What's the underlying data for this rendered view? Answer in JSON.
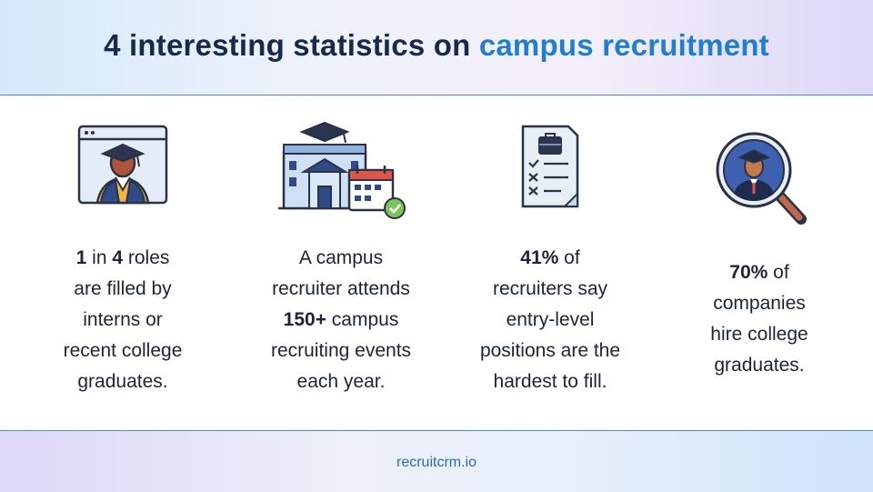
{
  "header": {
    "title_prefix": "4 interesting statistics on ",
    "title_accent": "campus recruitment"
  },
  "stats": [
    {
      "icon": "graduate-profile-icon",
      "lines": [
        [
          {
            "t": "1",
            "b": true
          },
          {
            "t": " in ",
            "b": false
          },
          {
            "t": "4",
            "b": true
          },
          {
            "t": " roles",
            "b": false
          }
        ],
        [
          {
            "t": "are filled by",
            "b": false
          }
        ],
        [
          {
            "t": "interns or",
            "b": false
          }
        ],
        [
          {
            "t": "recent college",
            "b": false
          }
        ],
        [
          {
            "t": "graduates.",
            "b": false
          }
        ]
      ]
    },
    {
      "icon": "campus-calendar-icon",
      "lines": [
        [
          {
            "t": "A campus",
            "b": false
          }
        ],
        [
          {
            "t": "recruiter attends",
            "b": false
          }
        ],
        [
          {
            "t": "150+",
            "b": true
          },
          {
            "t": " campus",
            "b": false
          }
        ],
        [
          {
            "t": "recruiting events",
            "b": false
          }
        ],
        [
          {
            "t": "each year.",
            "b": false
          }
        ]
      ]
    },
    {
      "icon": "job-checklist-icon",
      "lines": [
        [
          {
            "t": "41%",
            "b": true
          },
          {
            "t": " of",
            "b": false
          }
        ],
        [
          {
            "t": "recruiters say",
            "b": false
          }
        ],
        [
          {
            "t": "entry-level",
            "b": false
          }
        ],
        [
          {
            "t": "positions are the",
            "b": false
          }
        ],
        [
          {
            "t": "hardest to fill.",
            "b": false
          }
        ]
      ]
    },
    {
      "icon": "magnifier-graduate-icon",
      "lines": [
        [
          {
            "t": "70%",
            "b": true
          },
          {
            "t": " of",
            "b": false
          }
        ],
        [
          {
            "t": "companies",
            "b": false
          }
        ],
        [
          {
            "t": "hire college",
            "b": false
          }
        ],
        [
          {
            "t": "graduates.",
            "b": false
          }
        ]
      ]
    }
  ],
  "footer": {
    "text": "recruitcrm.io"
  },
  "colors": {
    "title": "#17294d",
    "accent": "#1e7fd0",
    "body_text": "#1d2438",
    "rule": "#4a8fd6"
  }
}
